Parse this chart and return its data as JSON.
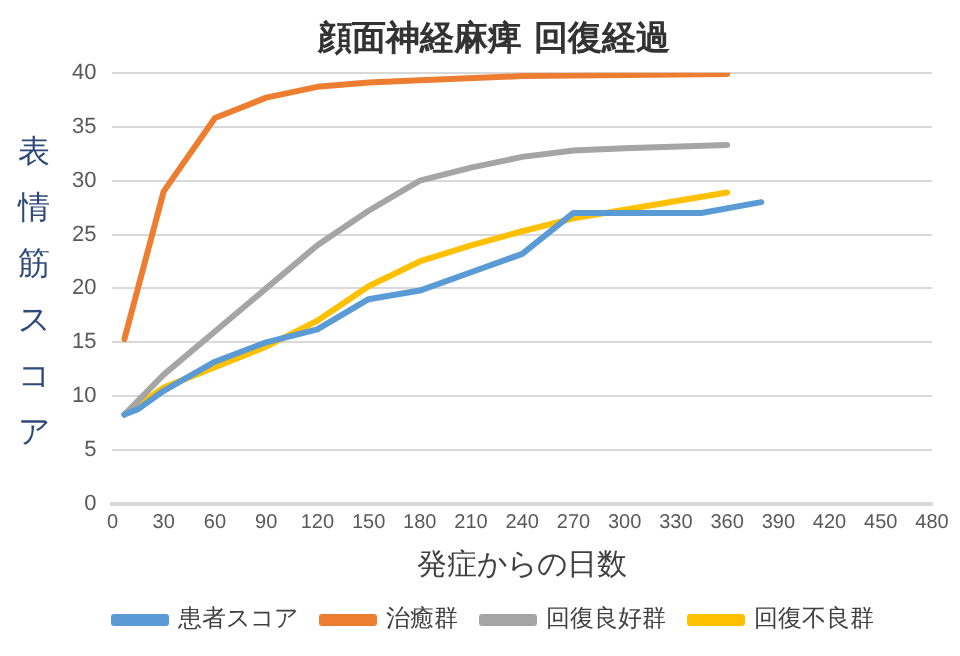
{
  "chart_data": {
    "type": "line",
    "title": "顔面神経麻痺 回復経過",
    "xlabel": "発症からの日数",
    "ylabel": "表情筋スコア",
    "xlim": [
      0,
      480
    ],
    "xticks": [
      0,
      30,
      60,
      90,
      120,
      150,
      180,
      210,
      240,
      270,
      300,
      330,
      360,
      390,
      420,
      450,
      480
    ],
    "ylim": [
      0,
      40
    ],
    "yticks": [
      0,
      5,
      10,
      15,
      20,
      25,
      30,
      35,
      40
    ],
    "grid": "y",
    "legend": "bottom",
    "marker": "none",
    "line_style": "solid",
    "series": [
      {
        "name": "患者スコア",
        "color": "#5b9bd5",
        "x": [
          7,
          15,
          30,
          60,
          90,
          120,
          150,
          180,
          210,
          240,
          270,
          300,
          345,
          380
        ],
        "values": [
          8.3,
          8.8,
          10.5,
          13.2,
          15,
          16.2,
          19,
          19.8,
          21.5,
          23.2,
          27,
          27,
          27,
          28
        ]
      },
      {
        "name": "治癒群",
        "color": "#ed7d31",
        "x": [
          7,
          30,
          60,
          90,
          120,
          150,
          180,
          240,
          360
        ],
        "values": [
          15.3,
          29,
          35.8,
          37.7,
          38.7,
          39.1,
          39.3,
          39.7,
          39.9
        ]
      },
      {
        "name": "回復良好群",
        "color": "#a5a5a5",
        "x": [
          7,
          30,
          60,
          90,
          120,
          150,
          180,
          210,
          240,
          270,
          300,
          360
        ],
        "values": [
          8.3,
          12,
          16,
          20,
          24,
          27.2,
          30,
          31.2,
          32.2,
          32.8,
          33,
          33.3
        ]
      },
      {
        "name": "回復不良群",
        "color": "#ffc000",
        "x": [
          7,
          30,
          60,
          90,
          120,
          150,
          180,
          210,
          240,
          270,
          300,
          360
        ],
        "values": [
          8.3,
          10.8,
          12.7,
          14.6,
          17,
          20.2,
          22.5,
          24,
          25.3,
          26.5,
          27.3,
          28.9
        ]
      }
    ]
  }
}
